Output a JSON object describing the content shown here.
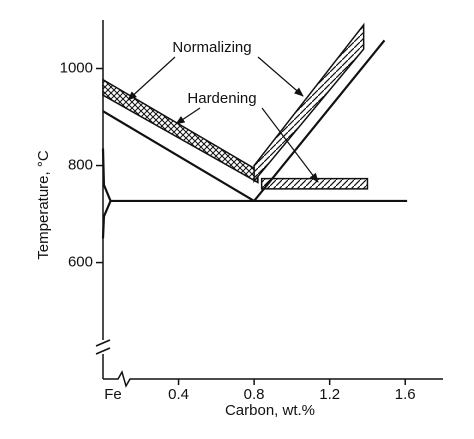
{
  "chart_data": {
    "type": "line",
    "xlabel": "Carbon, wt.%",
    "ylabel": "Temperature, °C",
    "xlim": [
      0,
      1.8
    ],
    "ylim": [
      360,
      1100
    ],
    "xticks": [
      {
        "value": 0,
        "label": "Fe"
      },
      0.4,
      0.8,
      1.2,
      1.6
    ],
    "yticks": [
      600,
      800,
      1000
    ],
    "series": [
      {
        "color": "#111111",
        "x": [
          0,
          0.8
        ],
        "values": [
          912,
          727
        ]
      },
      {
        "color": "#111111",
        "x": [
          0.8,
          1.49
        ],
        "values": [
          727,
          1058
        ]
      },
      {
        "color": "#111111",
        "x": [
          0.04,
          1.61
        ],
        "values": [
          727,
          727
        ]
      },
      {
        "color": "#111111",
        "x": [
          0,
          0.005,
          0.04,
          0.005,
          0
        ],
        "values": [
          835,
          760,
          727,
          695,
          650
        ]
      }
    ],
    "bands": [
      {
        "hatch": "cross",
        "x": [
          0,
          0.82
        ],
        "lower": [
          945,
          765
        ],
        "upper": [
          977,
          790
        ]
      },
      {
        "hatch": "diagonal",
        "x": [
          0.84,
          1.4
        ],
        "lower": [
          752,
          752
        ],
        "upper": [
          773,
          773
        ]
      },
      {
        "hatch": "diagonal",
        "x": [
          0.8,
          1.38
        ],
        "lower": [
          768,
          1040
        ],
        "upper": [
          800,
          1090
        ]
      }
    ],
    "annotations": [
      {
        "text": "Normalizing"
      },
      {
        "text": "Hardening"
      }
    ]
  }
}
